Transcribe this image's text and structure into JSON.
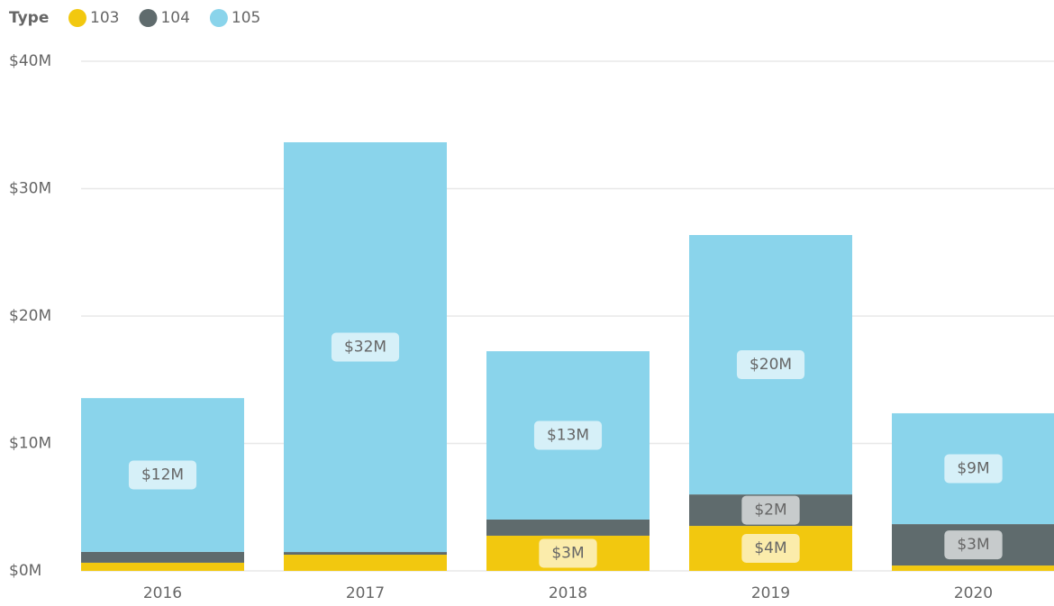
{
  "chart_data": {
    "type": "stacked_bar",
    "legend_title": "Type",
    "categories": [
      "2016",
      "2017",
      "2018",
      "2019",
      "2020"
    ],
    "series": [
      {
        "name": "103",
        "color": "#F2C80F",
        "values": [
          0.64,
          1.27,
          2.76,
          3.53,
          0.42
        ],
        "value_labels": [
          null,
          null,
          "$3M",
          "$4M",
          null
        ]
      },
      {
        "name": "104",
        "color": "#5F6B6D",
        "values": [
          0.85,
          0.21,
          1.27,
          2.47,
          3.25
        ],
        "value_labels": [
          null,
          null,
          null,
          "$2M",
          "$3M"
        ]
      },
      {
        "name": "105",
        "color": "#8AD4EB",
        "values": [
          12.07,
          32.16,
          13.21,
          20.36,
          8.7
        ],
        "value_labels": [
          "$12M",
          "$32M",
          "$13M",
          "$20M",
          "$9M"
        ]
      }
    ],
    "ylim": [
      0,
      40
    ],
    "yticks": [
      {
        "value": 0,
        "label": "$0M"
      },
      {
        "value": 10,
        "label": "$10M"
      },
      {
        "value": 20,
        "label": "$20M"
      },
      {
        "value": 30,
        "label": "$30M"
      },
      {
        "value": 40,
        "label": "$40M"
      }
    ],
    "grid": true,
    "legend": "top-left"
  }
}
